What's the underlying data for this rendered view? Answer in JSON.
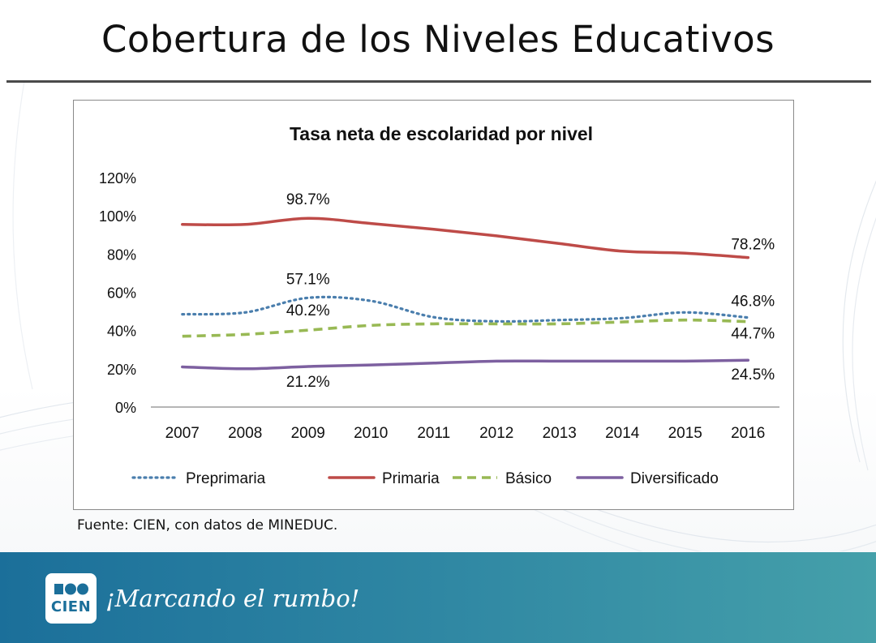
{
  "slide": {
    "title": "Cobertura de los Niveles Educativos",
    "source": "Fuente: CIEN, con datos de MINEDUC.",
    "logo_text": "CIEN",
    "slogan": "¡Marcando el rumbo!"
  },
  "colors": {
    "footer_start": "#1b6f9a",
    "footer_end": "#45a0aa",
    "preprimaria": "#4a7ead",
    "primaria": "#be4b48",
    "basico": "#98b954",
    "diversificado": "#7d60a0"
  },
  "chart_data": {
    "type": "line",
    "title": "Tasa neta de escolaridad por nivel",
    "xlabel": "",
    "ylabel": "",
    "ylim": [
      0,
      120
    ],
    "yticks": [
      0,
      20,
      40,
      60,
      80,
      100,
      120
    ],
    "ytick_labels": [
      "0%",
      "20%",
      "40%",
      "60%",
      "80%",
      "100%",
      "120%"
    ],
    "categories": [
      "2007",
      "2008",
      "2009",
      "2010",
      "2011",
      "2012",
      "2013",
      "2014",
      "2015",
      "2016"
    ],
    "legend_position": "bottom",
    "series": [
      {
        "name": "Preprimaria",
        "style": "dotted",
        "values": [
          48.5,
          49.5,
          57.1,
          55.5,
          47.0,
          44.8,
          45.5,
          46.5,
          49.5,
          46.8
        ]
      },
      {
        "name": "Primaria",
        "style": "solid",
        "values": [
          95.5,
          95.5,
          98.7,
          96.0,
          93.0,
          89.5,
          85.5,
          81.5,
          80.5,
          78.2
        ]
      },
      {
        "name": "Básico",
        "style": "dashed",
        "values": [
          37.0,
          38.0,
          40.2,
          42.7,
          43.5,
          43.5,
          43.5,
          44.5,
          45.5,
          44.7
        ]
      },
      {
        "name": "Diversificado",
        "style": "solid",
        "values": [
          21.0,
          20.0,
          21.2,
          22.0,
          23.0,
          24.0,
          24.0,
          24.0,
          24.0,
          24.5
        ]
      }
    ],
    "data_labels": [
      {
        "series": "Primaria",
        "x": "2009",
        "value": 98.7,
        "text": "98.7%"
      },
      {
        "series": "Primaria",
        "x": "2016",
        "value": 78.2,
        "text": "78.2%"
      },
      {
        "series": "Preprimaria",
        "x": "2009",
        "value": 57.1,
        "text": "57.1%"
      },
      {
        "series": "Preprimaria",
        "x": "2016",
        "value": 46.8,
        "text": "46.8%"
      },
      {
        "series": "Básico",
        "x": "2009",
        "value": 40.2,
        "text": "40.2%"
      },
      {
        "series": "Básico",
        "x": "2016",
        "value": 44.7,
        "text": "44.7%"
      },
      {
        "series": "Diversificado",
        "x": "2009",
        "value": 21.2,
        "text": "21.2%"
      },
      {
        "series": "Diversificado",
        "x": "2016",
        "value": 24.5,
        "text": "24.5%"
      }
    ]
  }
}
